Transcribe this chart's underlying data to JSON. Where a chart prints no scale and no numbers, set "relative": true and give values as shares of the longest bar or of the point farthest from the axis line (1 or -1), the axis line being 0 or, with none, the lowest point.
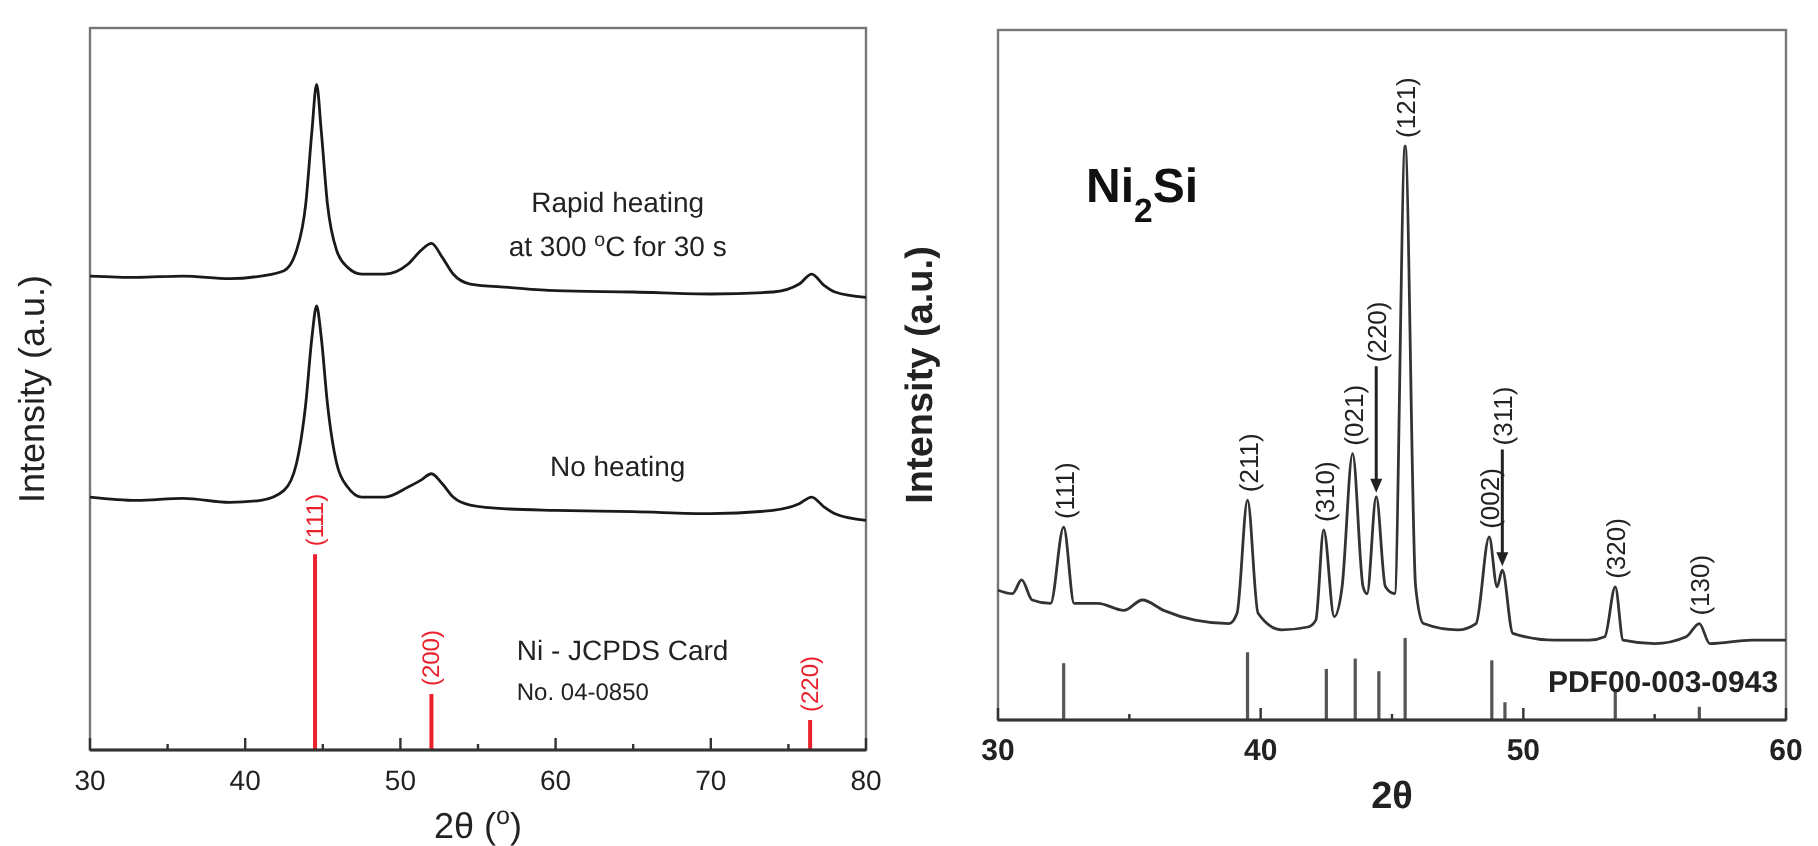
{
  "chart_data": [
    {
      "type": "line",
      "xlabel": "2θ ($^{o}$)",
      "ylabel": "Intensity (a.u.)",
      "relative": true,
      "xlim": [
        30,
        80
      ],
      "xticks": [
        30,
        {
          "value": 35,
          "label": null
        },
        40,
        {
          "value": 45,
          "label": null
        },
        50,
        {
          "value": 55,
          "label": null
        },
        60,
        {
          "value": 65,
          "label": null
        },
        70,
        {
          "value": 75,
          "label": null
        },
        80
      ],
      "tick_labels": "x",
      "annotations": [
        {
          "text": "(111)",
          "x": 44.5,
          "y": 0.294
        },
        {
          "text": "(200)",
          "x": 52,
          "y": 0.084
        },
        {
          "text": "(220)",
          "x": 76.4,
          "y": 0.045
        }
      ],
      "series": [
        {
          "name": "Rapid heating\nat 300 $^{o}$C for 30 s",
          "color": "#1a1a1a",
          "x": [
            30,
            33,
            36,
            39,
            41,
            42.5,
            43.3,
            43.9,
            44.3,
            44.6,
            44.9,
            45.3,
            45.9,
            46.6,
            47.5,
            49,
            50.5,
            51.3,
            52,
            52.7,
            53.4,
            54.5,
            57,
            60,
            65,
            70,
            74,
            75.7,
            76.5,
            77.3,
            78,
            80
          ],
          "values": [
            0.712,
            0.71,
            0.712,
            0.708,
            0.712,
            0.72,
            0.75,
            0.82,
            0.93,
            1.0,
            0.93,
            0.82,
            0.75,
            0.725,
            0.715,
            0.715,
            0.73,
            0.75,
            0.761,
            0.74,
            0.715,
            0.7,
            0.695,
            0.69,
            0.688,
            0.685,
            0.688,
            0.7,
            0.715,
            0.698,
            0.688,
            0.68
          ]
        },
        {
          "name": "No heating",
          "color": "#1a1a1a",
          "x": [
            30,
            33,
            36,
            39,
            41,
            42.5,
            43.3,
            43.9,
            44.3,
            44.6,
            44.9,
            45.3,
            45.9,
            46.6,
            47.5,
            49,
            50.5,
            51.3,
            52,
            52.7,
            53.4,
            54.5,
            57,
            60,
            65,
            70,
            74,
            75.7,
            76.5,
            77.3,
            78,
            80
          ],
          "values": [
            0.38,
            0.375,
            0.378,
            0.372,
            0.375,
            0.39,
            0.43,
            0.52,
            0.62,
            0.667,
            0.62,
            0.52,
            0.43,
            0.395,
            0.38,
            0.38,
            0.395,
            0.405,
            0.415,
            0.4,
            0.38,
            0.368,
            0.362,
            0.36,
            0.358,
            0.355,
            0.36,
            0.37,
            0.38,
            0.365,
            0.355,
            0.345
          ]
        },
        {
          "name": "Ni - JCPDS Card\nNo. 04-0850",
          "type": "bar",
          "color": "#e8212b",
          "x": [
            44.5,
            52,
            76.4
          ],
          "values": [
            0.294,
            0.084,
            0.045
          ]
        }
      ]
    },
    {
      "type": "line",
      "title": "Ni$_{2}$Si",
      "xlabel": "2θ",
      "ylabel": "Intensity (a.u.)",
      "relative": true,
      "xlim": [
        30,
        60
      ],
      "xticks": [
        30,
        {
          "value": 35,
          "label": null
        },
        40,
        {
          "value": 45,
          "label": null
        },
        50,
        {
          "value": 55,
          "label": null
        },
        60
      ],
      "tick_labels": "x",
      "annotations": [
        {
          "text": "(111)",
          "x": 32.5,
          "y": 0.336
        },
        {
          "text": "(211)",
          "x": 39.5,
          "y": 0.383
        },
        {
          "text": "(310)",
          "x": 42.4,
          "y": 0.331
        },
        {
          "text": "(021)",
          "x": 43.5,
          "y": 0.464
        },
        {
          "text": "(220)",
          "x": 44.4,
          "y": 0.389
        },
        {
          "text": "(121)",
          "x": 45.5,
          "y": 1.0
        },
        {
          "text": "(002)",
          "x": 48.7,
          "y": 0.319
        },
        {
          "text": "(311)",
          "x": 49.2,
          "y": 0.261
        },
        {
          "text": "(320)",
          "x": 53.5,
          "y": 0.232
        },
        {
          "text": "(130)",
          "x": 56.7,
          "y": 0.168
        }
      ],
      "series": [
        {
          "color": "#333333",
          "x": [
            30,
            30.55,
            30.9,
            31.3,
            32,
            32.5,
            32.9,
            33.8,
            34.8,
            35.5,
            36.3,
            37.5,
            38.8,
            39.1,
            39.5,
            39.9,
            40.8,
            41.8,
            42.1,
            42.4,
            42.8,
            43.1,
            43.5,
            43.9,
            44.05,
            44.4,
            44.75,
            45.1,
            45.5,
            45.9,
            46.2,
            47.5,
            48.2,
            48.7,
            49,
            49.2,
            49.6,
            51.2,
            52.5,
            53.1,
            53.5,
            53.8,
            55,
            56.2,
            56.7,
            57.1,
            58.7,
            60
          ],
          "values": [
            0.226,
            0.22,
            0.244,
            0.209,
            0.203,
            0.336,
            0.203,
            0.203,
            0.191,
            0.209,
            0.191,
            0.174,
            0.168,
            0.186,
            0.383,
            0.186,
            0.157,
            0.162,
            0.174,
            0.331,
            0.18,
            0.232,
            0.464,
            0.232,
            0.22,
            0.389,
            0.232,
            0.22,
            1.0,
            0.232,
            0.168,
            0.157,
            0.168,
            0.319,
            0.232,
            0.261,
            0.151,
            0.139,
            0.139,
            0.145,
            0.232,
            0.139,
            0.133,
            0.145,
            0.168,
            0.133,
            0.139,
            0.139
          ]
        },
        {
          "name": "PDF00-003-0943",
          "type": "bar",
          "color": "#555555",
          "x": [
            32.5,
            39.5,
            42.5,
            43.6,
            44.5,
            45.5,
            48.8,
            49.3,
            53.5,
            56.7
          ],
          "values": [
            0.099,
            0.118,
            0.089,
            0.107,
            0.085,
            0.143,
            0.104,
            0.031,
            0.052,
            0.023
          ]
        }
      ]
    }
  ]
}
